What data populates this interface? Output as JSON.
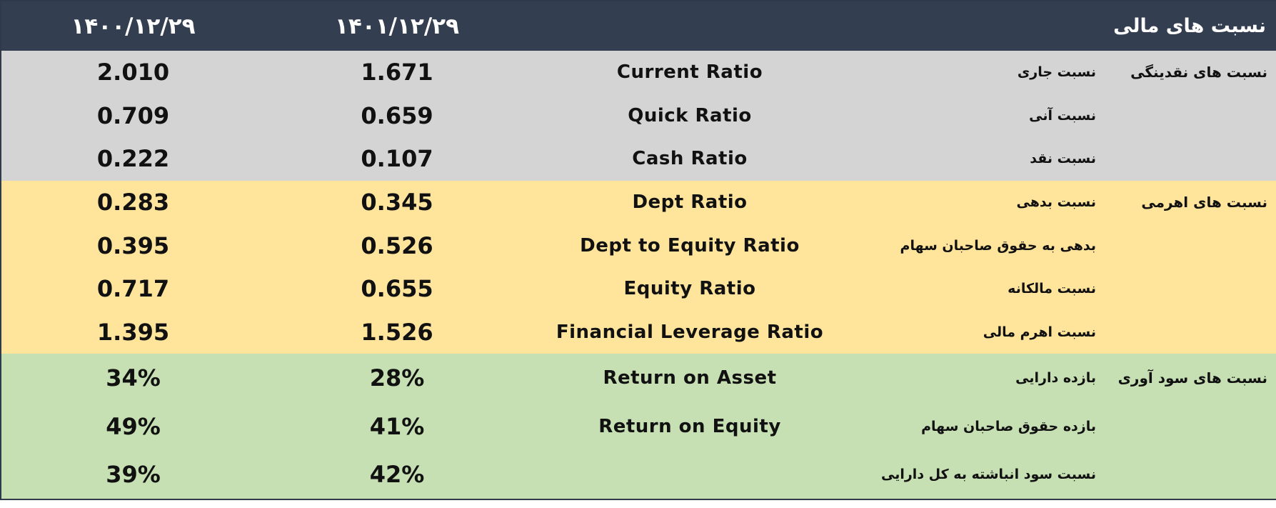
{
  "header": {
    "title": "نسبت های مالی",
    "year_1401": "۱۴۰۱/۱۲/۲۹",
    "year_1400": "۱۴۰۰/۱۲/۲۹"
  },
  "rows": [
    {
      "category": "نسبت های نقدینگی",
      "fa": "نسبت جاری",
      "en": "Current Ratio",
      "v1401": "1.671",
      "v1400": "2.010"
    },
    {
      "category": "",
      "fa": "نسبت آنی",
      "en": "Quick Ratio",
      "v1401": "0.659",
      "v1400": "0.709"
    },
    {
      "category": "",
      "fa": "نسبت نقد",
      "en": "Cash Ratio",
      "v1401": "0.107",
      "v1400": "0.222"
    },
    {
      "category": "نسبت های اهرمی",
      "fa": "نسبت بدهی",
      "en": "Dept Ratio",
      "v1401": "0.345",
      "v1400": "0.283"
    },
    {
      "category": "",
      "fa": "بدهی به حقوق صاحبان سهام",
      "en": "Dept to Equity Ratio",
      "v1401": "0.526",
      "v1400": "0.395"
    },
    {
      "category": "",
      "fa": "نسبت مالکانه",
      "en": "Equity Ratio",
      "v1401": "0.655",
      "v1400": "0.717"
    },
    {
      "category": "",
      "fa": "نسبت اهرم مالی",
      "en": "Financial Leverage Ratio",
      "v1401": "1.526",
      "v1400": "1.395"
    },
    {
      "category": "نسبت های سود آوری",
      "fa": "بازده دارایی",
      "en": "Return on Asset",
      "v1401": "28%",
      "v1400": "34%"
    },
    {
      "category": "",
      "fa": "بازده حقوق صاحبان سهام",
      "en": "Return on Equity",
      "v1401": "41%",
      "v1400": "49%"
    },
    {
      "category": "",
      "fa": "نسبت سود انباشته به  کل دارایی",
      "en": "",
      "v1401": "42%",
      "v1400": "39%"
    }
  ],
  "colors": {
    "header_bg": "#333f50",
    "liquidity_bg": "#d4d4d4",
    "leverage_bg": "#ffe49c",
    "profitability_bg": "#c6e0b4"
  }
}
